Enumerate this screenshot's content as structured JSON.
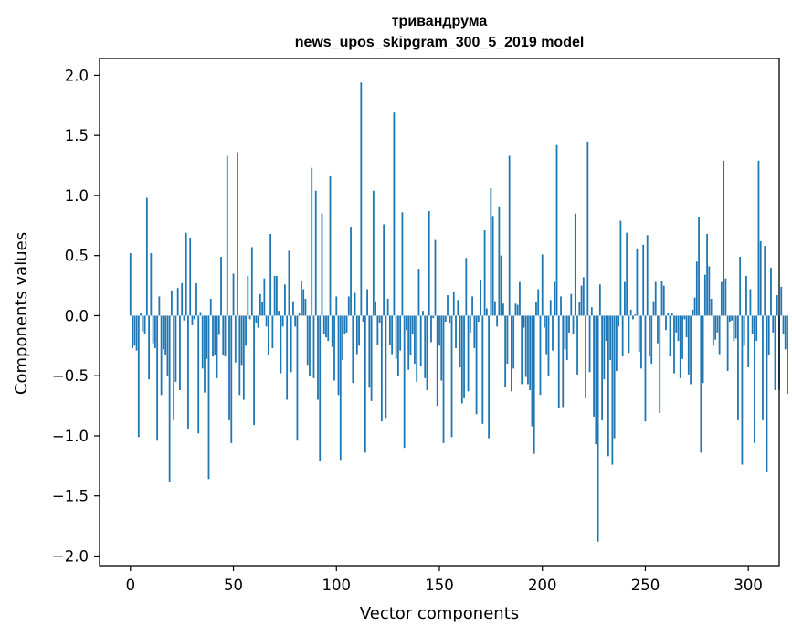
{
  "chart_data": {
    "type": "bar",
    "title": "тривандрума",
    "subtitle": "news_upos_skipgram_300_5_2019 model",
    "xlabel": "Vector components",
    "ylabel": "Components values",
    "xlim": [
      -15,
      315
    ],
    "ylim": [
      -2.08,
      2.14
    ],
    "x_ticks": [
      0,
      50,
      100,
      150,
      200,
      250,
      300
    ],
    "x_tick_labels": [
      "0",
      "50",
      "100",
      "150",
      "200",
      "250",
      "300"
    ],
    "y_ticks": [
      -2.0,
      -1.5,
      -1.0,
      -0.5,
      0.0,
      0.5,
      1.0,
      1.5,
      2.0
    ],
    "y_tick_labels": [
      "−2.0",
      "−1.5",
      "−1.0",
      "−0.5",
      "0.0",
      "0.5",
      "1.0",
      "1.5",
      "2.0"
    ],
    "grid": false,
    "bar_color": "#1f77b4",
    "series": [
      {
        "values": [
          0.52,
          -0.27,
          -0.25,
          -0.29,
          -1.01,
          0.02,
          -0.13,
          -0.15,
          0.98,
          -0.53,
          0.52,
          -0.23,
          -0.27,
          -1.04,
          0.16,
          -0.66,
          -0.28,
          -0.33,
          -0.5,
          -1.38,
          0.21,
          -0.87,
          -0.55,
          0.23,
          -0.62,
          0.27,
          -0.04,
          0.69,
          -0.94,
          0.65,
          -0.08,
          -0.03,
          0.27,
          -0.98,
          0.03,
          -0.44,
          -0.64,
          -0.36,
          -1.36,
          0.14,
          -0.34,
          -0.33,
          -0.52,
          -0.16,
          0.49,
          -0.33,
          -0.34,
          1.33,
          -0.87,
          -1.06,
          0.35,
          -0.39,
          1.36,
          -0.66,
          -0.41,
          -0.7,
          -0.25,
          0.33,
          -0.03,
          0.57,
          -0.91,
          -0.06,
          -0.1,
          0.18,
          0.11,
          0.31,
          -0.09,
          -0.33,
          0.68,
          -0.27,
          0.33,
          0.33,
          0.04,
          -0.48,
          -0.09,
          0.26,
          -0.7,
          0.54,
          -0.47,
          0.12,
          -0.09,
          -1.04,
          0.02,
          0.29,
          0.22,
          0.14,
          -0.41,
          -0.5,
          1.23,
          -0.52,
          1.04,
          -0.7,
          -1.21,
          0.85,
          -0.15,
          -0.18,
          -0.21,
          1.16,
          -0.26,
          -0.54,
          0.16,
          -0.66,
          -1.2,
          -0.37,
          -0.15,
          -0.14,
          0.16,
          0.74,
          -0.56,
          0.19,
          -0.32,
          -0.25,
          1.94,
          -0.05,
          -1.14,
          0.22,
          -0.6,
          -0.71,
          1.04,
          0.12,
          -0.24,
          -0.06,
          -0.88,
          0.76,
          -0.85,
          0.14,
          -0.24,
          -0.32,
          1.69,
          -0.36,
          -0.5,
          -0.29,
          0.86,
          -1.1,
          -0.12,
          -0.45,
          -0.33,
          -0.15,
          -0.4,
          -0.55,
          0.39,
          -0.42,
          0.04,
          -0.52,
          -0.62,
          0.87,
          -0.22,
          -0.02,
          0.63,
          -0.75,
          -0.25,
          -0.54,
          -1.06,
          -0.05,
          0.17,
          -0.06,
          -1.01,
          0.2,
          -0.27,
          0.13,
          -0.43,
          -0.73,
          -0.68,
          0.48,
          -0.63,
          -0.14,
          0.16,
          -0.27,
          -0.82,
          -0.05,
          0.3,
          -0.9,
          0.71,
          0.06,
          -1.02,
          1.06,
          0.83,
          0.12,
          -0.09,
          0.91,
          0.5,
          0.1,
          -0.59,
          -0.4,
          1.33,
          -0.63,
          -0.44,
          0.1,
          0.09,
          0.28,
          -0.57,
          -0.1,
          -0.51,
          -0.57,
          -0.62,
          -0.92,
          -1.15,
          0.11,
          0.22,
          -0.66,
          0.51,
          -0.1,
          -0.32,
          -0.5,
          0.13,
          -0.29,
          0.28,
          1.42,
          -0.77,
          0.16,
          -0.76,
          -0.28,
          -0.37,
          -0.14,
          0.18,
          -0.15,
          0.85,
          -0.49,
          0.11,
          0.25,
          0.32,
          -0.68,
          1.45,
          -0.47,
          0.07,
          -0.84,
          -1.07,
          -1.88,
          0.26,
          -0.87,
          -0.53,
          -0.21,
          -1.17,
          -0.37,
          -1.24,
          -1.02,
          -0.46,
          -0.09,
          0.79,
          -0.34,
          0.28,
          0.69,
          -0.31,
          0.05,
          -0.03,
          0.01,
          0.56,
          -0.3,
          -0.44,
          0.59,
          -0.88,
          0.67,
          -0.34,
          -0.4,
          0.12,
          0.28,
          -0.23,
          -0.81,
          0.29,
          0.25,
          -0.12,
          0.02,
          -0.34,
          0.02,
          -0.48,
          -0.14,
          -0.21,
          -0.52,
          -0.36,
          -0.03,
          -0.18,
          -0.49,
          -0.57,
          0.05,
          0.15,
          0.45,
          0.82,
          -1.14,
          -0.56,
          0.34,
          0.68,
          0.41,
          0.14,
          -0.25,
          -0.2,
          -0.14,
          -0.32,
          0.28,
          1.29,
          0.31,
          -0.46,
          -0.05,
          -0.04,
          -0.21,
          -0.19,
          -0.87,
          0.49,
          -1.24,
          -0.25,
          0.33,
          -0.43,
          0.22,
          -0.15,
          -1.06,
          -0.21,
          1.29,
          0.62,
          -0.87,
          0.58,
          -1.3,
          -0.33,
          0.4,
          -0.14,
          -0.62,
          0.17,
          -0.62,
          0.24,
          -0.15,
          -0.28,
          -0.65
        ]
      }
    ]
  }
}
